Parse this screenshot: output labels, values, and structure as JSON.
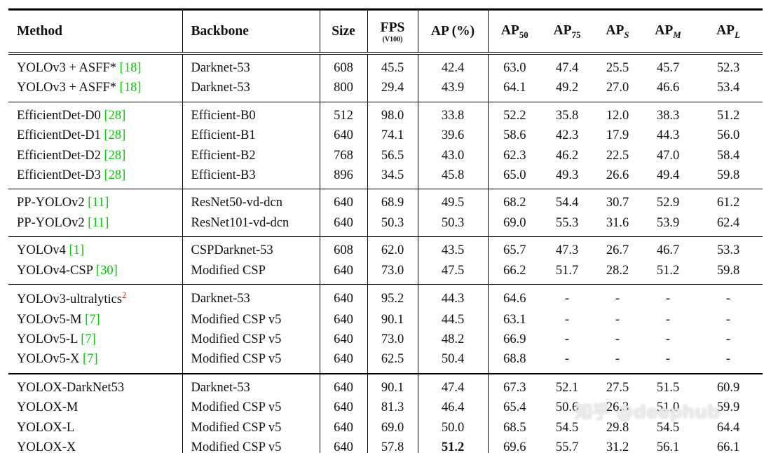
{
  "colors": {
    "citation_green": "#00cc00",
    "superscript_red": "#cc2a00",
    "text": "#111111",
    "border": "#000000"
  },
  "watermark": {
    "text": "知乎 @deephub"
  },
  "table": {
    "columns": [
      {
        "id": "method",
        "label": "Method",
        "align": "left"
      },
      {
        "id": "backbone",
        "label": "Backbone",
        "align": "left"
      },
      {
        "id": "size",
        "label": "Size"
      },
      {
        "id": "fps",
        "label": "FPS",
        "note": "(V100)"
      },
      {
        "id": "ap",
        "label": "AP (%)"
      },
      {
        "id": "ap50",
        "label": "AP",
        "sub": "50"
      },
      {
        "id": "ap75",
        "label": "AP",
        "sub": "75"
      },
      {
        "id": "aps",
        "label": "AP",
        "sub": "S",
        "sub_italic": true
      },
      {
        "id": "apm",
        "label": "AP",
        "sub": "M",
        "sub_italic": true
      },
      {
        "id": "apl",
        "label": "AP",
        "sub": "L",
        "sub_italic": true
      }
    ],
    "groups": [
      {
        "rows": [
          {
            "method": "YOLOv3 + ASFF*",
            "cite": "[18]",
            "backbone": "Darknet-53",
            "size": "608",
            "fps": "45.5",
            "ap": "42.4",
            "ap50": "63.0",
            "ap75": "47.4",
            "aps": "25.5",
            "apm": "45.7",
            "apl": "52.3"
          },
          {
            "method": "YOLOv3 + ASFF*",
            "cite": "[18]",
            "backbone": "Darknet-53",
            "size": "800",
            "fps": "29.4",
            "ap": "43.9",
            "ap50": "64.1",
            "ap75": "49.2",
            "aps": "27.0",
            "apm": "46.6",
            "apl": "53.4"
          }
        ]
      },
      {
        "rows": [
          {
            "method": "EfficientDet-D0",
            "cite": "[28]",
            "backbone": "Efficient-B0",
            "size": "512",
            "fps": "98.0",
            "ap": "33.8",
            "ap50": "52.2",
            "ap75": "35.8",
            "aps": "12.0",
            "apm": "38.3",
            "apl": "51.2"
          },
          {
            "method": "EfficientDet-D1",
            "cite": "[28]",
            "backbone": "Efficient-B1",
            "size": "640",
            "fps": "74.1",
            "ap": "39.6",
            "ap50": "58.6",
            "ap75": "42.3",
            "aps": "17.9",
            "apm": "44.3",
            "apl": "56.0"
          },
          {
            "method": "EfficientDet-D2",
            "cite": "[28]",
            "backbone": "Efficient-B2",
            "size": "768",
            "fps": "56.5",
            "ap": "43.0",
            "ap50": "62.3",
            "ap75": "46.2",
            "aps": "22.5",
            "apm": "47.0",
            "apl": "58.4"
          },
          {
            "method": "EfficientDet-D3",
            "cite": "[28]",
            "backbone": "Efficient-B3",
            "size": "896",
            "fps": "34.5",
            "ap": "45.8",
            "ap50": "65.0",
            "ap75": "49.3",
            "aps": "26.6",
            "apm": "49.4",
            "apl": "59.8"
          }
        ]
      },
      {
        "rows": [
          {
            "method": "PP-YOLOv2",
            "cite": "[11]",
            "backbone": "ResNet50-vd-dcn",
            "size": "640",
            "fps": "68.9",
            "ap": "49.5",
            "ap50": "68.2",
            "ap75": "54.4",
            "aps": "30.7",
            "apm": "52.9",
            "apl": "61.2"
          },
          {
            "method": "PP-YOLOv2",
            "cite": "[11]",
            "backbone": "ResNet101-vd-dcn",
            "size": "640",
            "fps": "50.3",
            "ap": "50.3",
            "ap50": "69.0",
            "ap75": "55.3",
            "aps": "31.6",
            "apm": "53.9",
            "apl": "62.4"
          }
        ]
      },
      {
        "rows": [
          {
            "method": "YOLOv4",
            "cite": "[1]",
            "backbone": "CSPDarknet-53",
            "size": "608",
            "fps": "62.0",
            "ap": "43.5",
            "ap50": "65.7",
            "ap75": "47.3",
            "aps": "26.7",
            "apm": "46.7",
            "apl": "53.3"
          },
          {
            "method": "YOLOv4-CSP",
            "cite": "[30]",
            "backbone": "Modified CSP",
            "size": "640",
            "fps": "73.0",
            "ap": "47.5",
            "ap50": "66.2",
            "ap75": "51.7",
            "aps": "28.2",
            "apm": "51.2",
            "apl": "59.8"
          }
        ]
      },
      {
        "rows": [
          {
            "method": "YOLOv3-ultralytics",
            "sup": "2",
            "backbone": "Darknet-53",
            "size": "640",
            "fps": "95.2",
            "ap": "44.3",
            "ap50": "64.6",
            "ap75": "-",
            "aps": "-",
            "apm": "-",
            "apl": "-"
          },
          {
            "method": "YOLOv5-M",
            "cite": "[7]",
            "backbone": "Modified CSP v5",
            "size": "640",
            "fps": "90.1",
            "ap": "44.5",
            "ap50": "63.1",
            "ap75": "-",
            "aps": "-",
            "apm": "-",
            "apl": "-"
          },
          {
            "method": "YOLOv5-L",
            "cite": "[7]",
            "backbone": "Modified CSP v5",
            "size": "640",
            "fps": "73.0",
            "ap": "48.2",
            "ap50": "66.9",
            "ap75": "-",
            "aps": "-",
            "apm": "-",
            "apl": "-"
          },
          {
            "method": "YOLOv5-X",
            "cite": "[7]",
            "backbone": "Modified CSP v5",
            "size": "640",
            "fps": "62.5",
            "ap": "50.4",
            "ap50": "68.8",
            "ap75": "-",
            "aps": "-",
            "apm": "-",
            "apl": "-"
          }
        ]
      },
      {
        "thick_top": true,
        "rows": [
          {
            "method": "YOLOX-DarkNet53",
            "backbone": "Darknet-53",
            "size": "640",
            "fps": "90.1",
            "ap": "47.4",
            "ap50": "67.3",
            "ap75": "52.1",
            "aps": "27.5",
            "apm": "51.5",
            "apl": "60.9"
          },
          {
            "method": "YOLOX-M",
            "backbone": "Modified CSP v5",
            "size": "640",
            "fps": "81.3",
            "ap": "46.4",
            "ap50": "65.4",
            "ap75": "50.6",
            "aps": "26.3",
            "apm": "51.0",
            "apl": "59.9"
          },
          {
            "method": "YOLOX-L",
            "backbone": "Modified CSP v5",
            "size": "640",
            "fps": "69.0",
            "ap": "50.0",
            "ap50": "68.5",
            "ap75": "54.5",
            "aps": "29.8",
            "apm": "54.5",
            "apl": "64.4"
          },
          {
            "method": "YOLOX-X",
            "backbone": "Modified CSP v5",
            "size": "640",
            "fps": "57.8",
            "ap": "51.2",
            "ap_bold": true,
            "ap50": "69.6",
            "ap75": "55.7",
            "aps": "31.2",
            "apm": "56.1",
            "apl": "66.1"
          }
        ]
      }
    ]
  }
}
